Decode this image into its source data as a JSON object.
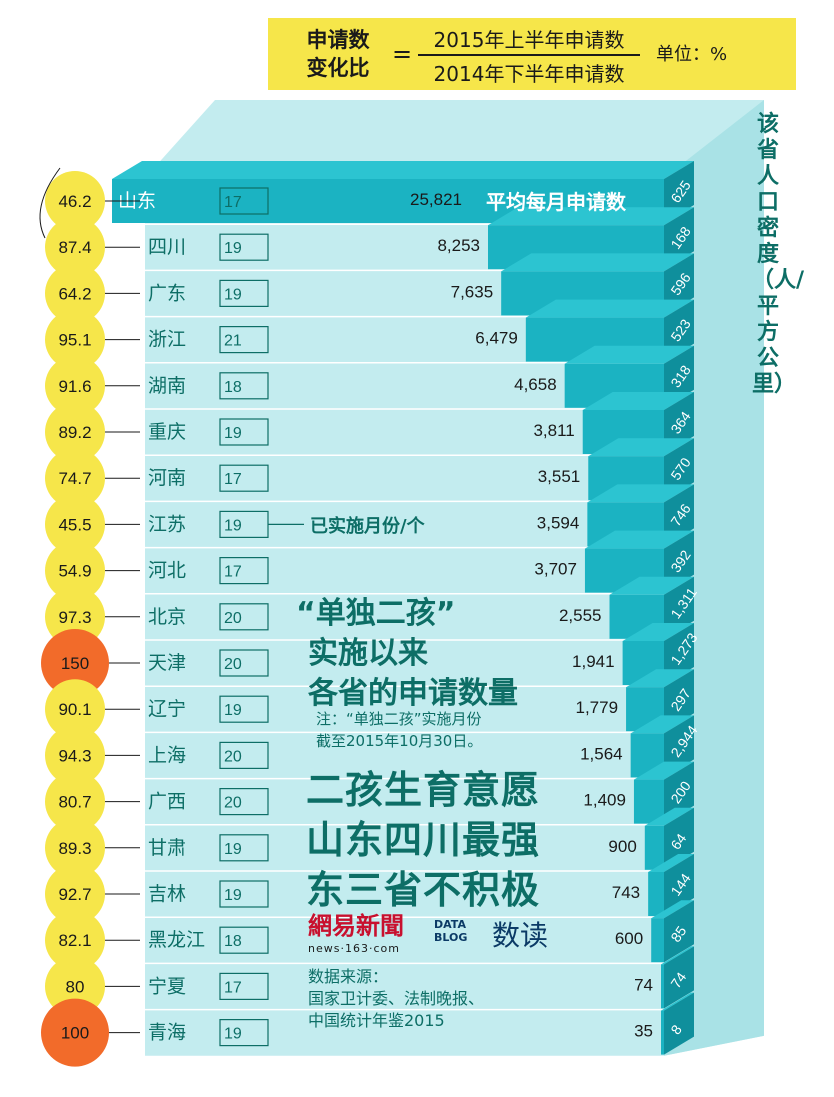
{
  "formula": {
    "left": "申请数\n变化比",
    "equals": "=",
    "numerator": "2015年上半年申请数",
    "denominator": "2014年下半年申请数",
    "unit": "单位：%"
  },
  "avg_label": "平均每月申请数",
  "months_label": "已实施月份/个",
  "density_title": "该省人口密度（人/平方公里）",
  "headline": {
    "quote": "“单独二孩”",
    "line2": "实施以来",
    "line3": "各省的申请数量",
    "note1": "注：“单独二孩”实施月份",
    "note2": "截至2015年10月30日。"
  },
  "big_text": [
    "二孩生育意愿",
    "山东四川最强",
    "东三省不积极"
  ],
  "logos": {
    "netease": "網易新聞",
    "netease_sub": "news·163·com",
    "datablog": "DATA\nBLOG",
    "shudu": "数读"
  },
  "source": [
    "数据来源：",
    "国家卫计委、法制晚报、",
    "中国统计年鉴2015"
  ],
  "colors": {
    "bar_face": "#1bb3c2",
    "bar_side": "#0f8f9c",
    "bar_top": "#2cc4d1",
    "panel": "#c3ecef",
    "ratio_yellow": "#f6e64a",
    "ratio_orange": "#f26b2a",
    "text_teal": "#0d6e66"
  },
  "chart_data": {
    "type": "bar",
    "categories": [
      "山东",
      "四川",
      "广东",
      "浙江",
      "湖南",
      "重庆",
      "河南",
      "江苏",
      "河北",
      "北京",
      "天津",
      "辽宁",
      "上海",
      "广西",
      "甘肃",
      "吉林",
      "黑龙江",
      "宁夏",
      "青海"
    ],
    "series": [
      {
        "name": "平均每月申请数",
        "values": [
          25821,
          8253,
          7635,
          6479,
          4658,
          3811,
          3551,
          3594,
          3707,
          2555,
          1941,
          1779,
          1564,
          1409,
          900,
          743,
          600,
          74,
          35
        ],
        "labels": [
          "25,821",
          "8,253",
          "7,635",
          "6,479",
          "4,658",
          "3,811",
          "3,551",
          "3,594",
          "3,707",
          "2,555",
          "1,941",
          "1,779",
          "1,564",
          "1,409",
          "900",
          "743",
          "600",
          "74",
          "35"
        ]
      },
      {
        "name": "已实施月份/个",
        "values": [
          17,
          19,
          19,
          21,
          18,
          19,
          17,
          19,
          17,
          20,
          20,
          19,
          20,
          20,
          19,
          19,
          18,
          17,
          19
        ],
        "labels": [
          "17",
          "19",
          "19",
          "21",
          "18",
          "19",
          "17",
          "19",
          "17",
          "20",
          "20",
          "19",
          "20",
          "20",
          "19",
          "19",
          "18",
          "17",
          "19"
        ]
      },
      {
        "name": "申请数变化比",
        "values": [
          46.2,
          87.4,
          64.2,
          95.1,
          91.6,
          89.2,
          74.7,
          45.5,
          54.9,
          97.3,
          150,
          90.1,
          94.3,
          80.7,
          89.3,
          92.7,
          82.1,
          80,
          100
        ],
        "labels": [
          "46.2",
          "87.4",
          "64.2",
          "95.1",
          "91.6",
          "89.2",
          "74.7",
          "45.5",
          "54.9",
          "97.3",
          "150",
          "90.1",
          "94.3",
          "80.7",
          "89.3",
          "92.7",
          "82.1",
          "80",
          "100"
        ]
      },
      {
        "name": "该省人口密度（人/平方公里）",
        "values": [
          625,
          168,
          596,
          523,
          318,
          364,
          570,
          746,
          392,
          1311,
          1273,
          297,
          2944,
          200,
          64,
          144,
          85,
          74,
          8
        ],
        "labels": [
          "625",
          "168",
          "596",
          "523",
          "318",
          "364",
          "570",
          "746",
          "392",
          "1,311",
          "1,273",
          "297",
          "2,944",
          "200",
          "64",
          "144",
          "85",
          "74",
          "8"
        ]
      }
    ]
  }
}
